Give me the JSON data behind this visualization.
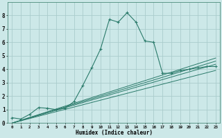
{
  "xlabel": "Humidex (Indice chaleur)",
  "bg_color": "#cce8e8",
  "grid_color": "#aacccc",
  "line_color": "#2a7a6a",
  "xlim": [
    -0.5,
    23.5
  ],
  "ylim": [
    0,
    9
  ],
  "xtick_labels": [
    "0",
    "1",
    "2",
    "3",
    "4",
    "5",
    "6",
    "7",
    "8",
    "9",
    "10",
    "11",
    "12",
    "13",
    "14",
    "15",
    "16",
    "17",
    "18",
    "19",
    "20",
    "21",
    "22",
    "23"
  ],
  "ytick_labels": [
    "0",
    "1",
    "2",
    "3",
    "4",
    "5",
    "6",
    "7",
    "8"
  ],
  "main_line_x": [
    0,
    1,
    2,
    3,
    4,
    5,
    6,
    7,
    8,
    9,
    10,
    11,
    12,
    13,
    14,
    15,
    16,
    17,
    18,
    19,
    20,
    21,
    22,
    23
  ],
  "main_line_y": [
    0.4,
    0.3,
    0.65,
    1.15,
    1.1,
    1.0,
    1.1,
    1.6,
    2.8,
    4.1,
    5.5,
    7.7,
    7.5,
    8.2,
    7.5,
    6.1,
    6.0,
    3.7,
    3.7,
    3.9,
    4.0,
    4.1,
    4.2,
    4.2
  ],
  "ref_lines": [
    [
      0,
      0.2,
      0.4,
      0.6,
      0.8,
      1.0,
      1.2,
      1.4,
      1.6,
      1.8,
      2.0,
      2.2,
      2.4,
      2.6,
      2.8,
      3.0,
      3.2,
      3.4,
      3.6,
      3.8,
      4.0,
      4.2,
      4.4,
      4.6
    ],
    [
      0,
      0.21,
      0.42,
      0.63,
      0.84,
      1.05,
      1.26,
      1.47,
      1.68,
      1.89,
      2.1,
      2.31,
      2.52,
      2.73,
      2.94,
      3.15,
      3.36,
      3.57,
      3.78,
      3.99,
      4.2,
      4.41,
      4.62,
      4.83
    ],
    [
      0,
      0.19,
      0.38,
      0.57,
      0.76,
      0.95,
      1.14,
      1.33,
      1.52,
      1.71,
      1.9,
      2.09,
      2.28,
      2.47,
      2.66,
      2.85,
      3.04,
      3.23,
      3.42,
      3.61,
      3.8,
      3.99,
      4.18,
      4.37
    ],
    [
      0,
      0.17,
      0.34,
      0.51,
      0.68,
      0.85,
      1.02,
      1.19,
      1.36,
      1.53,
      1.7,
      1.87,
      2.04,
      2.21,
      2.38,
      2.55,
      2.72,
      2.89,
      3.06,
      3.23,
      3.4,
      3.57,
      3.74,
      3.91
    ]
  ]
}
